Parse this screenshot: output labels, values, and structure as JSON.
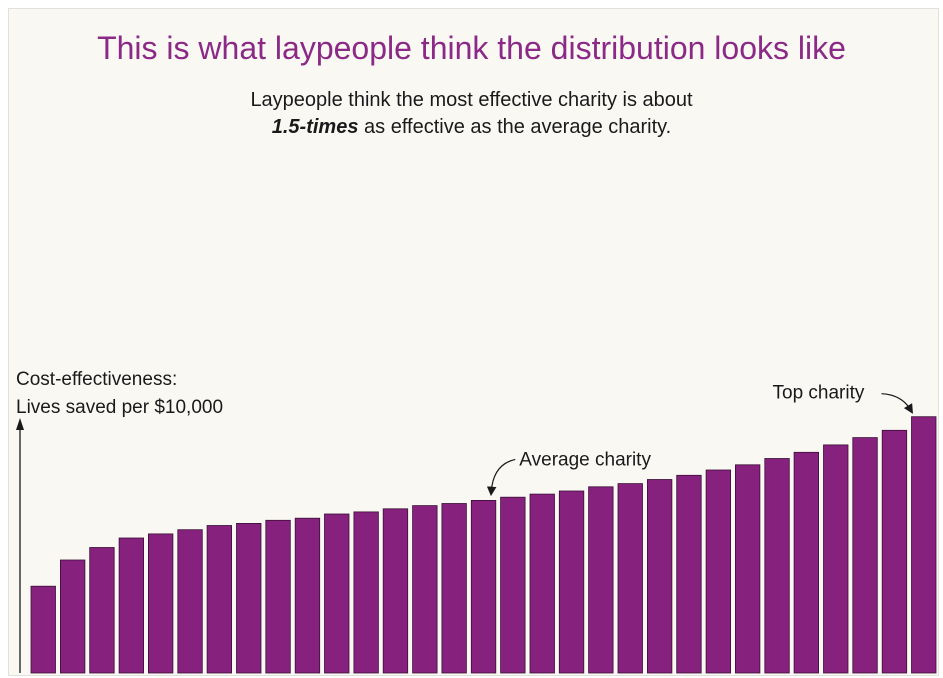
{
  "chart_data": {
    "type": "bar",
    "title": "This is what laypeople think the distribution looks like",
    "subtitle": {
      "line1": "Laypeople think the most effective charity is about",
      "emphasis": "1.5-times",
      "line2_rest": " as effective as the average charity."
    },
    "ylabel": {
      "line1": "Cost-effectiveness:",
      "line2": "Lives saved per $10,000"
    },
    "values": [
      83,
      108,
      120,
      129,
      133,
      137,
      141,
      143,
      146,
      148,
      152,
      154,
      157,
      160,
      162,
      165,
      168,
      171,
      174,
      178,
      181,
      185,
      189,
      194,
      199,
      205,
      211,
      218,
      225,
      232,
      245
    ],
    "ylim": [
      0,
      260
    ],
    "bar_color": "#86217e",
    "annotations": [
      {
        "text": "Average charity",
        "bar_index": 15
      },
      {
        "text": "Top charity",
        "bar_index": 30
      }
    ]
  }
}
